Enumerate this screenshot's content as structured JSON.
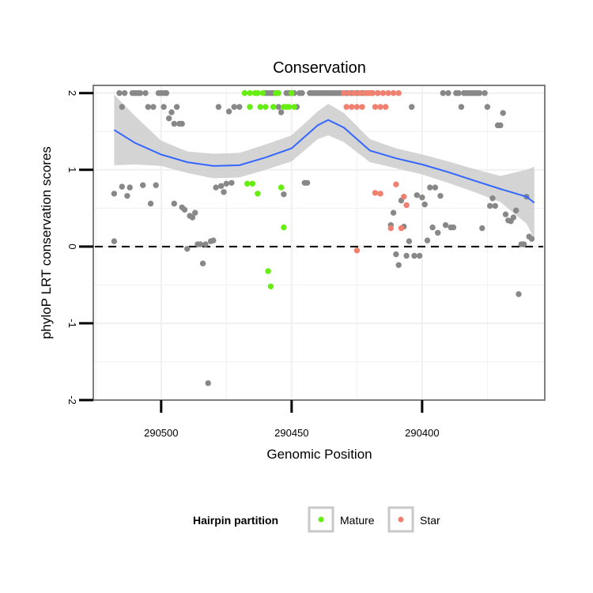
{
  "chart_data": {
    "type": "scatter",
    "title": "Conservation",
    "xlabel": "Genomic Position",
    "ylabel": "phyloP LRT conservation scores",
    "x_reversed": true,
    "xlim": [
      290526,
      290353
    ],
    "ylim": [
      -2,
      2.1
    ],
    "x_ticks": [
      290500,
      290450,
      290400
    ],
    "x_tick_labels": [
      "290500",
      "290450",
      "290400"
    ],
    "y_ticks": [
      -2,
      -1,
      0,
      1,
      2
    ],
    "y_tick_labels": [
      "-2",
      "-1",
      "0",
      "1",
      "2"
    ],
    "grid": true,
    "reference_line": {
      "y": 0,
      "style": "dashed"
    },
    "legend": {
      "title": "Hairpin partition",
      "placement": "bottom",
      "entries": [
        {
          "label": "Mature",
          "color": "#66ee11"
        },
        {
          "label": "Star",
          "color": "#f08070"
        }
      ]
    },
    "colors": {
      "Other": "#888888",
      "Mature": "#66ee11",
      "Star": "#f08070",
      "smooth": "#3366ff",
      "ribbon": "#c9c9c9"
    },
    "smooth": {
      "x": [
        290518,
        290510,
        290500,
        290490,
        290480,
        290470,
        290460,
        290450,
        290440,
        290436,
        290430,
        290420,
        290410,
        290400,
        290390,
        290380,
        290370,
        290360,
        290357
      ],
      "y": [
        1.52,
        1.35,
        1.2,
        1.1,
        1.05,
        1.06,
        1.16,
        1.28,
        1.58,
        1.65,
        1.55,
        1.25,
        1.15,
        1.07,
        0.97,
        0.86,
        0.75,
        0.65,
        0.57
      ],
      "upper": [
        1.98,
        1.7,
        1.38,
        1.24,
        1.21,
        1.22,
        1.33,
        1.45,
        1.76,
        1.86,
        1.74,
        1.4,
        1.28,
        1.2,
        1.11,
        1.01,
        0.92,
        1.0,
        1.04
      ],
      "lower": [
        1.06,
        1.07,
        1.05,
        0.96,
        0.89,
        0.9,
        1.0,
        1.11,
        1.4,
        1.45,
        1.36,
        1.1,
        1.02,
        0.94,
        0.83,
        0.71,
        0.58,
        0.3,
        0.1
      ]
    },
    "series": [
      {
        "name": "Other",
        "points": [
          [
            290518,
            0.07
          ],
          [
            290518,
            0.69
          ],
          [
            290516,
            2.0
          ],
          [
            290515,
            1.82
          ],
          [
            290515,
            0.78
          ],
          [
            290514,
            2.0
          ],
          [
            290513,
            0.66
          ],
          [
            290512,
            0.77
          ],
          [
            290511,
            2.0
          ],
          [
            290510,
            2.0
          ],
          [
            290509,
            2.0
          ],
          [
            290508,
            2.0
          ],
          [
            290507,
            0.8
          ],
          [
            290506,
            2.0
          ],
          [
            290505,
            1.82
          ],
          [
            290504,
            0.56
          ],
          [
            290503,
            1.82
          ],
          [
            290502,
            0.8
          ],
          [
            290501,
            2.0
          ],
          [
            290500,
            2.0
          ],
          [
            290499,
            2.0
          ],
          [
            290499,
            1.82
          ],
          [
            290498,
            2.0
          ],
          [
            290497,
            1.67
          ],
          [
            290496,
            1.75
          ],
          [
            290495,
            1.6
          ],
          [
            290495,
            0.56
          ],
          [
            290494,
            1.82
          ],
          [
            290493,
            1.6
          ],
          [
            290492,
            1.6
          ],
          [
            290492,
            0.51
          ],
          [
            290491,
            0.48
          ],
          [
            290490,
            -0.03
          ],
          [
            290489,
            0.4
          ],
          [
            290488,
            0.38
          ],
          [
            290487,
            0.44
          ],
          [
            290486,
            0.03
          ],
          [
            290485,
            0.03
          ],
          [
            290484,
            -0.22
          ],
          [
            290483,
            0.03
          ],
          [
            290482,
            -1.78
          ],
          [
            290481,
            0.07
          ],
          [
            290480,
            0.08
          ],
          [
            290479,
            0.77
          ],
          [
            290478,
            1.82
          ],
          [
            290477,
            0.79
          ],
          [
            290476,
            0.71
          ],
          [
            290475,
            0.82
          ],
          [
            290474,
            1.76
          ],
          [
            290473,
            0.83
          ],
          [
            290472,
            1.82
          ],
          [
            290470,
            1.82
          ],
          [
            290460,
            2.0
          ],
          [
            290459,
            2.0
          ],
          [
            290458,
            2.0
          ],
          [
            290457,
            2.0
          ],
          [
            290456,
            2.0
          ],
          [
            290455,
            1.82
          ],
          [
            290454,
            1.75
          ],
          [
            290453,
            0.68
          ],
          [
            290452,
            2.0
          ],
          [
            290451,
            2.0
          ],
          [
            290450,
            2.0
          ],
          [
            290449,
            2.0
          ],
          [
            290448,
            1.82
          ],
          [
            290447,
            2.0
          ],
          [
            290446,
            2.0
          ],
          [
            290445,
            0.83
          ],
          [
            290444,
            0.83
          ],
          [
            290443,
            2.0
          ],
          [
            290442,
            2.0
          ],
          [
            290441,
            2.0
          ],
          [
            290440,
            2.0
          ],
          [
            290439,
            2.0
          ],
          [
            290438,
            2.0
          ],
          [
            290437,
            2.0
          ],
          [
            290436,
            2.0
          ],
          [
            290435,
            2.0
          ],
          [
            290434,
            2.0
          ],
          [
            290433,
            2.0
          ],
          [
            290432,
            2.0
          ],
          [
            290431,
            2.0
          ],
          [
            290429,
            2.0
          ],
          [
            290427,
            2.0
          ],
          [
            290425,
            2.0
          ],
          [
            290423,
            2.0
          ],
          [
            290421,
            2.0
          ],
          [
            290419,
            2.0
          ],
          [
            290417,
            2.0
          ],
          [
            290412,
            0.28
          ],
          [
            290411,
            0.44
          ],
          [
            290410,
            -0.1
          ],
          [
            290409,
            -0.24
          ],
          [
            290408,
            0.6
          ],
          [
            290407,
            0.26
          ],
          [
            290406,
            -0.12
          ],
          [
            290405,
            0.07
          ],
          [
            290404,
            1.82
          ],
          [
            290403,
            -0.12
          ],
          [
            290402,
            0.67
          ],
          [
            290401,
            -0.12
          ],
          [
            290400,
            0.64
          ],
          [
            290399,
            0.55
          ],
          [
            290398,
            0.08
          ],
          [
            290397,
            0.77
          ],
          [
            290396,
            0.25
          ],
          [
            290395,
            0.77
          ],
          [
            290394,
            0.18
          ],
          [
            290393,
            0.66
          ],
          [
            290392,
            2.0
          ],
          [
            290391,
            0.28
          ],
          [
            290390,
            2.0
          ],
          [
            290389,
            0.25
          ],
          [
            290388,
            0.25
          ],
          [
            290387,
            2.0
          ],
          [
            290386,
            2.0
          ],
          [
            290385,
            1.82
          ],
          [
            290384,
            2.0
          ],
          [
            290383,
            2.0
          ],
          [
            290382,
            2.0
          ],
          [
            290381,
            2.0
          ],
          [
            290380,
            2.0
          ],
          [
            290379,
            2.0
          ],
          [
            290378,
            2.0
          ],
          [
            290377,
            0.24
          ],
          [
            290376,
            2.0
          ],
          [
            290375,
            1.82
          ],
          [
            290374,
            0.53
          ],
          [
            290373,
            0.63
          ],
          [
            290372,
            0.53
          ],
          [
            290371,
            1.58
          ],
          [
            290370,
            1.58
          ],
          [
            290369,
            1.74
          ],
          [
            290368,
            0.42
          ],
          [
            290367,
            0.34
          ],
          [
            290366,
            0.33
          ],
          [
            290365,
            0.38
          ],
          [
            290364,
            0.47
          ],
          [
            290363,
            -0.62
          ],
          [
            290362,
            0.03
          ],
          [
            290361,
            0.03
          ],
          [
            290360,
            0.65
          ],
          [
            290359,
            0.13
          ],
          [
            290358,
            0.1
          ]
        ]
      },
      {
        "name": "Mature",
        "points": [
          [
            290468,
            2.0
          ],
          [
            290467,
            0.82
          ],
          [
            290466,
            2.0
          ],
          [
            290466,
            1.82
          ],
          [
            290465,
            0.82
          ],
          [
            290464,
            2.0
          ],
          [
            290463,
            2.0
          ],
          [
            290463,
            0.69
          ],
          [
            290462,
            1.82
          ],
          [
            290461,
            2.0
          ],
          [
            290460,
            1.82
          ],
          [
            290459,
            -0.32
          ],
          [
            290458,
            -0.52
          ],
          [
            290457,
            1.82
          ],
          [
            290456,
            2.0
          ],
          [
            290455,
            2.0
          ],
          [
            290454,
            0.77
          ],
          [
            290453,
            0.25
          ],
          [
            290453,
            1.82
          ],
          [
            290452,
            1.82
          ],
          [
            290451,
            1.82
          ],
          [
            290450,
            2.0
          ],
          [
            290449,
            1.82
          ]
        ]
      },
      {
        "name": "Star",
        "points": [
          [
            290430,
            2.0
          ],
          [
            290429,
            1.82
          ],
          [
            290428,
            2.0
          ],
          [
            290427,
            1.82
          ],
          [
            290426,
            2.0
          ],
          [
            290425,
            -0.05
          ],
          [
            290425,
            1.82
          ],
          [
            290424,
            2.0
          ],
          [
            290423,
            1.82
          ],
          [
            290422,
            2.0
          ],
          [
            290421,
            2.0
          ],
          [
            290420,
            2.0
          ],
          [
            290419,
            2.0
          ],
          [
            290418,
            0.7
          ],
          [
            290418,
            1.82
          ],
          [
            290417,
            2.0
          ],
          [
            290416,
            0.69
          ],
          [
            290416,
            1.82
          ],
          [
            290415,
            2.0
          ],
          [
            290414,
            1.82
          ],
          [
            290413,
            2.0
          ],
          [
            290412,
            0.24
          ],
          [
            290411,
            2.0
          ],
          [
            290410,
            0.81
          ],
          [
            290409,
            2.0
          ],
          [
            290408,
            0.24
          ],
          [
            290407,
            0.65
          ],
          [
            290406,
            0.54
          ]
        ]
      }
    ]
  }
}
